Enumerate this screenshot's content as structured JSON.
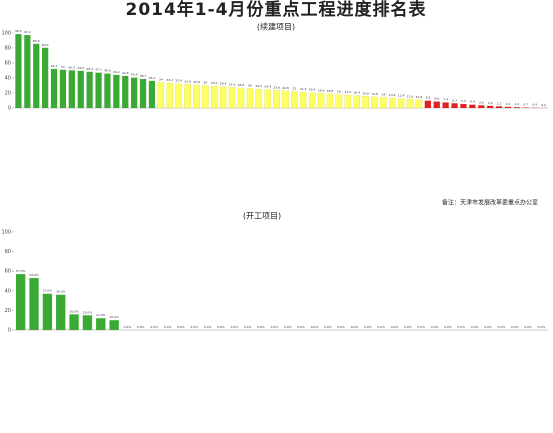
{
  "title": "2014年1-4月份重点工程进度排名表",
  "note": "备注：天津市发展改革委重点办公室",
  "chart_data": [
    {
      "type": "bar",
      "title": "(续建项目)",
      "categories": [
        null,
        null,
        null,
        null,
        null,
        null,
        null,
        null,
        null,
        null,
        null,
        null,
        null,
        null,
        null,
        null,
        null,
        null,
        null,
        null,
        null,
        null,
        null,
        null,
        null,
        null,
        null,
        null,
        null,
        null,
        null,
        null,
        null,
        null,
        null,
        null,
        null,
        null,
        null,
        null,
        null,
        null,
        null,
        null,
        null,
        null,
        null,
        null,
        null,
        null,
        null,
        null,
        null,
        null,
        null,
        null,
        null,
        null,
        null,
        null
      ],
      "values": [
        98.5,
        97.2,
        85.6,
        80.3,
        52.1,
        51.0,
        50.2,
        49.5,
        48.3,
        47.1,
        45.9,
        44.2,
        42.8,
        40.5,
        38.7,
        36.2,
        34.0,
        33.2,
        32.4,
        31.6,
        30.8,
        30.0,
        29.2,
        28.4,
        27.6,
        26.8,
        26.0,
        25.2,
        24.4,
        23.6,
        22.8,
        22.0,
        21.2,
        20.4,
        19.6,
        18.8,
        18.0,
        17.2,
        16.4,
        15.6,
        14.8,
        14.0,
        13.2,
        12.4,
        11.6,
        10.8,
        9.8,
        8.6,
        7.4,
        6.3,
        5.3,
        4.4,
        3.6,
        2.9,
        2.2,
        1.6,
        1.1,
        0.7,
        0.4,
        0.2
      ],
      "colors": [
        "#3aaa35",
        "#3aaa35",
        "#3aaa35",
        "#3aaa35",
        "#3aaa35",
        "#3aaa35",
        "#3aaa35",
        "#3aaa35",
        "#3aaa35",
        "#3aaa35",
        "#3aaa35",
        "#3aaa35",
        "#3aaa35",
        "#3aaa35",
        "#3aaa35",
        "#3aaa35",
        "#ffff66",
        "#ffff66",
        "#ffff66",
        "#ffff66",
        "#ffff66",
        "#ffff66",
        "#ffff66",
        "#ffff66",
        "#ffff66",
        "#ffff66",
        "#ffff66",
        "#ffff66",
        "#ffff66",
        "#ffff66",
        "#ffff66",
        "#ffff66",
        "#ffff66",
        "#ffff66",
        "#ffff66",
        "#ffff66",
        "#ffff66",
        "#ffff66",
        "#ffff66",
        "#ffff66",
        "#ffff66",
        "#ffff66",
        "#ffff66",
        "#ffff66",
        "#ffff66",
        "#ffff66",
        "#e02020",
        "#e02020",
        "#e02020",
        "#e02020",
        "#e02020",
        "#e02020",
        "#e02020",
        "#e02020",
        "#e02020",
        "#e02020",
        "#e02020",
        "#e02020",
        "#e02020",
        "#e02020"
      ],
      "ylim": [
        0,
        100
      ],
      "yticks": [
        0,
        20,
        40,
        60,
        80,
        100
      ]
    },
    {
      "type": "bar",
      "title": "(开工项目)",
      "categories": [
        null,
        null,
        null,
        null,
        null,
        null,
        null,
        null,
        null,
        null,
        null,
        null,
        null,
        null,
        null,
        null,
        null,
        null,
        null,
        null,
        null,
        null,
        null,
        null,
        null,
        null,
        null,
        null,
        null,
        null,
        null,
        null,
        null,
        null,
        null,
        null,
        null,
        null,
        null,
        null
      ],
      "values": [
        57,
        53,
        37,
        36,
        16,
        15,
        12,
        10,
        0,
        0,
        0,
        0,
        0,
        0,
        0,
        0,
        0,
        0,
        0,
        0,
        0,
        0,
        0,
        0,
        0,
        0,
        0,
        0,
        0,
        0,
        0,
        0,
        0,
        0,
        0,
        0,
        0,
        0,
        0,
        0
      ],
      "value_labels": [
        "57.0%",
        "53.0%",
        "37.0%",
        "36.0%",
        "16.0%",
        "15.0%",
        "12.0%",
        "10.0%",
        "0.0%",
        "0.0%",
        "0.0%",
        "0.0%",
        "0.0%",
        "0.0%",
        "0.0%",
        "0.0%",
        "0.0%",
        "0.0%",
        "0.0%",
        "0.0%",
        "0.0%",
        "0.0%",
        "0.0%",
        "0.0%",
        "0.0%",
        "0.0%",
        "0.0%",
        "0.0%",
        "0.0%",
        "0.0%",
        "0.0%",
        "0.0%",
        "0.0%",
        "0.0%",
        "0.0%",
        "0.0%",
        "0.0%",
        "0.0%",
        "0.0%",
        "0.0%"
      ],
      "color": "#3aaa35",
      "ylim": [
        0,
        100
      ],
      "yticks": [
        0,
        20,
        40,
        60,
        80,
        100
      ]
    }
  ]
}
